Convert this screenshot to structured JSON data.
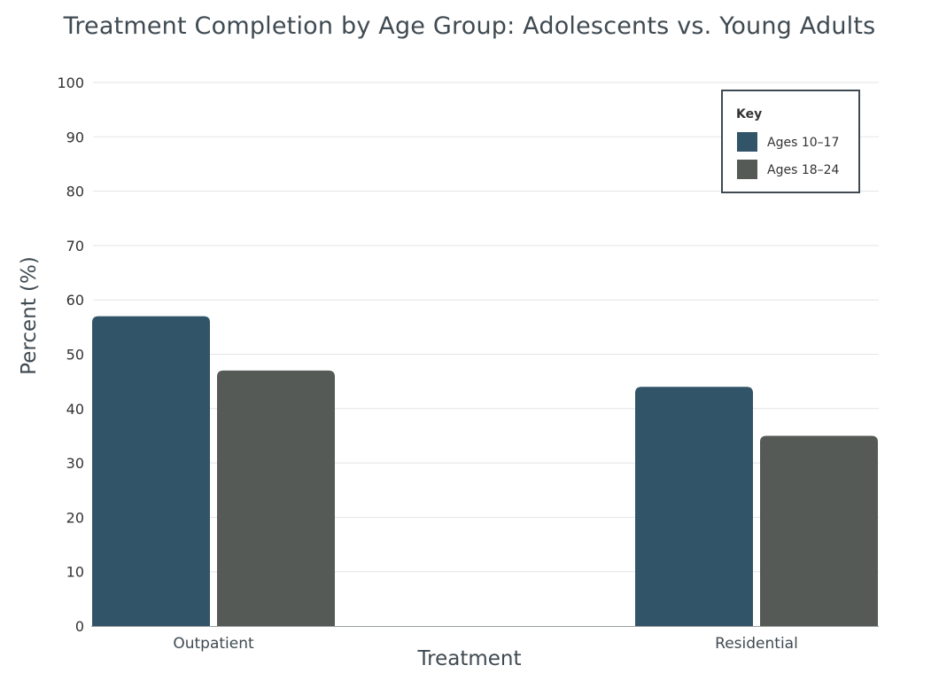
{
  "chart_data": {
    "type": "bar",
    "title": "Treatment Completion by Age Group: Adolescents vs. Young Adults",
    "xlabel": "Treatment",
    "ylabel": "Percent (%)",
    "categories": [
      "Outpatient",
      "Residential"
    ],
    "series": [
      {
        "name": "Ages 10–17",
        "values": [
          57,
          44
        ],
        "color": "#325468"
      },
      {
        "name": "Ages 18–24",
        "values": [
          47,
          35
        ],
        "color": "#555a56"
      }
    ],
    "ylim": [
      0,
      100
    ],
    "yticks": [
      0,
      10,
      20,
      30,
      40,
      50,
      60,
      70,
      80,
      90,
      100
    ],
    "grid": true,
    "legend": {
      "title": "Key",
      "position": "top-right"
    }
  }
}
